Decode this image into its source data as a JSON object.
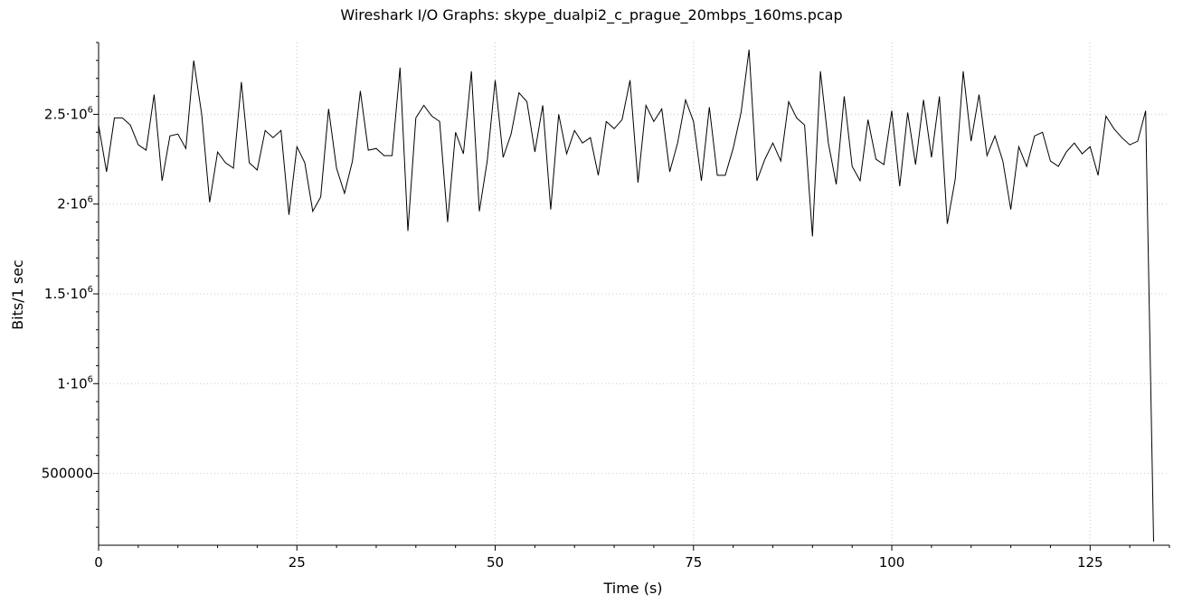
{
  "chart_data": {
    "type": "line",
    "title": "Wireshark I/O Graphs: skype_dualpi2_c_prague_20mbps_160ms.pcap",
    "xlabel": "Time (s)",
    "ylabel": "Bits/1 sec",
    "xlim": [
      0,
      135
    ],
    "ylim": [
      100000,
      2900000
    ],
    "grid": true,
    "x_ticks": [
      0,
      25,
      50,
      75,
      100,
      125
    ],
    "x_tick_labels": [
      "0",
      "25",
      "50",
      "75",
      "100",
      "125"
    ],
    "y_ticks": [
      {
        "value": 500000,
        "base": "500000",
        "exp": ""
      },
      {
        "value": 1000000,
        "base": "1·10",
        "exp": "6"
      },
      {
        "value": 1500000,
        "base": "1.5·10",
        "exp": "6"
      },
      {
        "value": 2000000,
        "base": "2·10",
        "exp": "6"
      },
      {
        "value": 2500000,
        "base": "2.5·10",
        "exp": "6"
      }
    ],
    "series": [
      {
        "color": "#000000",
        "x": [
          0,
          1,
          2,
          3,
          4,
          5,
          6,
          7,
          8,
          9,
          10,
          11,
          12,
          13,
          14,
          15,
          16,
          17,
          18,
          19,
          20,
          21,
          22,
          23,
          24,
          25,
          26,
          27,
          28,
          29,
          30,
          31,
          32,
          33,
          34,
          35,
          36,
          37,
          38,
          39,
          40,
          41,
          42,
          43,
          44,
          45,
          46,
          47,
          48,
          49,
          50,
          51,
          52,
          53,
          54,
          55,
          56,
          57,
          58,
          59,
          60,
          61,
          62,
          63,
          64,
          65,
          66,
          67,
          68,
          69,
          70,
          71,
          72,
          73,
          74,
          75,
          76,
          77,
          78,
          79,
          80,
          81,
          82,
          83,
          84,
          85,
          86,
          87,
          88,
          89,
          90,
          91,
          92,
          93,
          94,
          95,
          96,
          97,
          98,
          99,
          100,
          101,
          102,
          103,
          104,
          105,
          106,
          107,
          108,
          109,
          110,
          111,
          112,
          113,
          114,
          115,
          116,
          117,
          118,
          119,
          120,
          121,
          122,
          123,
          124,
          125,
          126,
          127,
          128,
          129,
          130,
          131,
          132,
          133
        ],
        "values": [
          2440000,
          2180000,
          2480000,
          2480000,
          2440000,
          2330000,
          2300000,
          2610000,
          2130000,
          2380000,
          2390000,
          2310000,
          2800000,
          2500000,
          2010000,
          2290000,
          2230000,
          2200000,
          2680000,
          2230000,
          2190000,
          2410000,
          2370000,
          2410000,
          1940000,
          2320000,
          2230000,
          1960000,
          2040000,
          2530000,
          2200000,
          2060000,
          2240000,
          2630000,
          2300000,
          2310000,
          2270000,
          2270000,
          2760000,
          1850000,
          2480000,
          2550000,
          2490000,
          2460000,
          1900000,
          2400000,
          2280000,
          2740000,
          1960000,
          2240000,
          2690000,
          2260000,
          2390000,
          2620000,
          2570000,
          2290000,
          2550000,
          1970000,
          2500000,
          2280000,
          2410000,
          2340000,
          2370000,
          2160000,
          2460000,
          2420000,
          2470000,
          2690000,
          2120000,
          2550000,
          2460000,
          2530000,
          2180000,
          2340000,
          2580000,
          2460000,
          2130000,
          2540000,
          2160000,
          2160000,
          2310000,
          2510000,
          2860000,
          2130000,
          2250000,
          2340000,
          2240000,
          2570000,
          2480000,
          2440000,
          1820000,
          2740000,
          2340000,
          2110000,
          2600000,
          2210000,
          2130000,
          2470000,
          2250000,
          2220000,
          2520000,
          2100000,
          2510000,
          2220000,
          2580000,
          2260000,
          2600000,
          1890000,
          2140000,
          2740000,
          2350000,
          2610000,
          2270000,
          2380000,
          2240000,
          1970000,
          2320000,
          2210000,
          2380000,
          2400000,
          2240000,
          2210000,
          2290000,
          2340000,
          2280000,
          2320000,
          2160000,
          2490000,
          2420000,
          2370000,
          2330000,
          2350000,
          2520000,
          120000
        ]
      }
    ]
  }
}
